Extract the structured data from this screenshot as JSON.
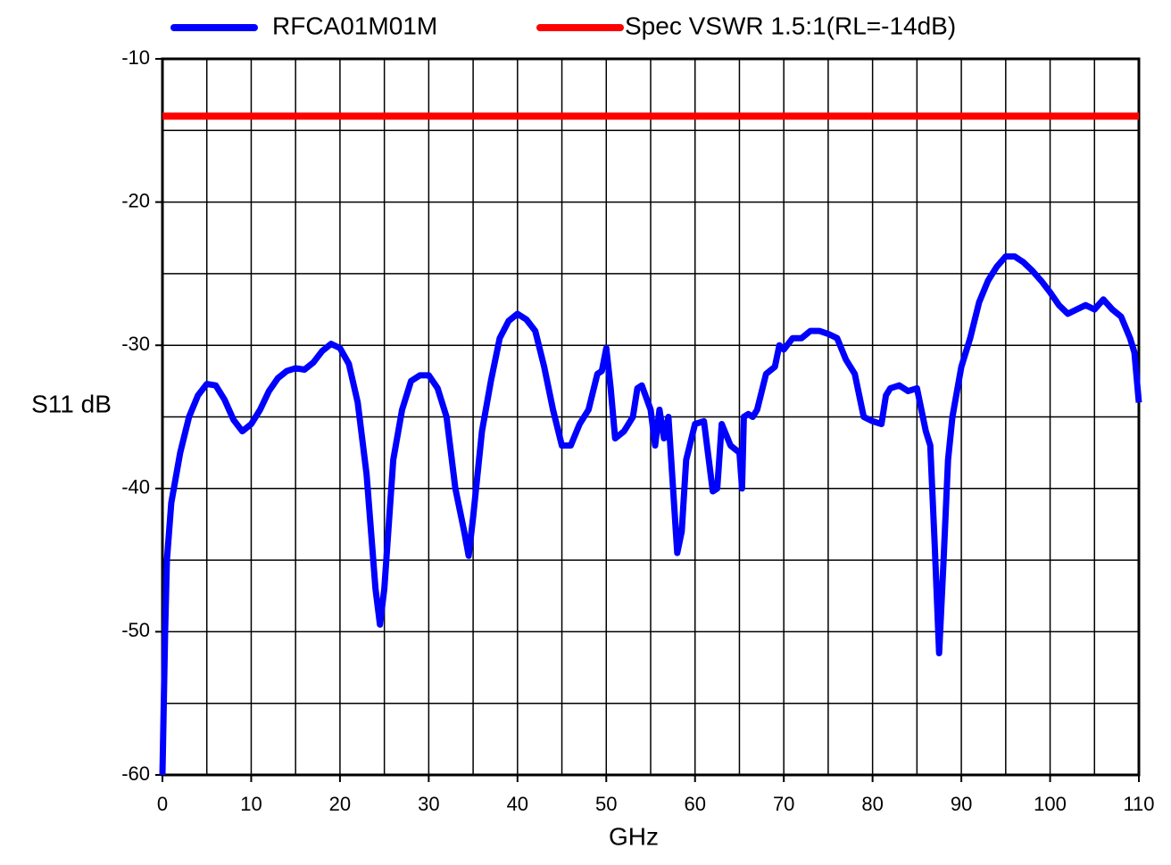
{
  "chart_data": {
    "type": "line",
    "xlabel": "GHz",
    "ylabel": "S11 dB",
    "xlim": [
      0,
      110
    ],
    "ylim": [
      -60,
      -10
    ],
    "xticks": [
      0,
      10,
      20,
      30,
      40,
      50,
      60,
      70,
      80,
      90,
      100,
      110
    ],
    "yticks": [
      -60,
      -50,
      -40,
      -30,
      -20,
      -10
    ],
    "grid": true,
    "legend": "top",
    "series": [
      {
        "name": "RFCA01M01M",
        "color": "#0000ff",
        "x": [
          0,
          0.3,
          0.5,
          1,
          2,
          3,
          4,
          5,
          6,
          7,
          8,
          9,
          10,
          11,
          12,
          13,
          14,
          15,
          16,
          17,
          18,
          19,
          20,
          21,
          22,
          23,
          24,
          24.5,
          25,
          26,
          27,
          28,
          29,
          30,
          31,
          32,
          33,
          34,
          34.5,
          35,
          36,
          37,
          38,
          39,
          40,
          41,
          42,
          43,
          44,
          45,
          46,
          47,
          48,
          49,
          49.5,
          50,
          50.5,
          51,
          52,
          53,
          53.5,
          54,
          55,
          55.5,
          56,
          56.5,
          57,
          58,
          58.5,
          59,
          60,
          61,
          62,
          62.5,
          63,
          64,
          65,
          65.3,
          65.5,
          66,
          66.5,
          67,
          68,
          69,
          69.5,
          70,
          71,
          72,
          73,
          74,
          75,
          76,
          77,
          78,
          79,
          80,
          81,
          81.5,
          82,
          83,
          84,
          85,
          86,
          86.5,
          87,
          87.5,
          88,
          88.5,
          89,
          90,
          91,
          92,
          93,
          94,
          95,
          96,
          97,
          98,
          99,
          100,
          101,
          102,
          103,
          104,
          105,
          106,
          107,
          108,
          109,
          109.5,
          110
        ],
        "values": [
          -60,
          -50,
          -45,
          -41,
          -37.5,
          -35,
          -33.5,
          -32.7,
          -32.8,
          -33.8,
          -35.2,
          -36,
          -35.5,
          -34.5,
          -33.2,
          -32.3,
          -31.8,
          -31.6,
          -31.7,
          -31.2,
          -30.4,
          -29.9,
          -30.2,
          -31.3,
          -34,
          -39,
          -47,
          -49.5,
          -47,
          -38,
          -34.5,
          -32.5,
          -32.1,
          -32.1,
          -33,
          -35,
          -40,
          -43,
          -44.7,
          -42,
          -36,
          -32.5,
          -29.5,
          -28.3,
          -27.8,
          -28.2,
          -29,
          -31.5,
          -34.5,
          -37,
          -37,
          -35.5,
          -34.5,
          -32,
          -31.8,
          -30.2,
          -33,
          -36.5,
          -36,
          -35,
          -33,
          -32.8,
          -34.5,
          -37,
          -34.5,
          -36.5,
          -35,
          -44.5,
          -43,
          -38,
          -35.5,
          -35.3,
          -40.2,
          -40,
          -35.5,
          -37,
          -37.5,
          -40,
          -35,
          -34.8,
          -35,
          -34.5,
          -32,
          -31.5,
          -30,
          -30.3,
          -29.5,
          -29.5,
          -29,
          -29,
          -29.2,
          -29.5,
          -31,
          -32,
          -35,
          -35.3,
          -35.5,
          -33.5,
          -33,
          -32.8,
          -33.2,
          -33,
          -36,
          -37,
          -44,
          -51.5,
          -45,
          -38,
          -35,
          -31.5,
          -29.5,
          -27,
          -25.5,
          -24.5,
          -23.8,
          -23.8,
          -24.2,
          -24.8,
          -25.5,
          -26.3,
          -27.2,
          -27.8,
          -27.5,
          -27.2,
          -27.5,
          -26.8,
          -27.5,
          -28,
          -29.5,
          -30.5,
          -34
        ]
      },
      {
        "name": "Spec VSWR 1.5:1(RL=-14dB)",
        "color": "#ff0000",
        "x": [
          0,
          110
        ],
        "values": [
          -14,
          -14
        ]
      }
    ]
  }
}
